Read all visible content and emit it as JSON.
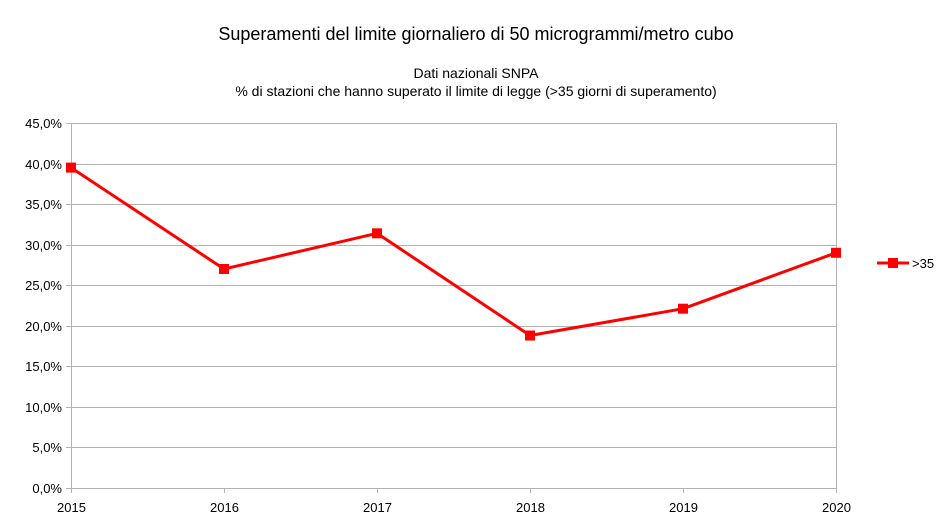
{
  "chart_data": {
    "type": "line",
    "title": "Superamenti del limite giornaliero di 50 microgrammi/metro cubo",
    "subtitle_lines": [
      "Dati nazionali SNPA",
      "% di stazioni che hanno superato il limite di legge (>35 giorni di superamento)"
    ],
    "xlabel": "",
    "ylabel": "",
    "categories": [
      "2015",
      "2016",
      "2017",
      "2018",
      "2019",
      "2020"
    ],
    "series": [
      {
        "name": ">35",
        "color": "#ff0000",
        "marker": "square",
        "values": [
          39.5,
          27.0,
          31.4,
          18.8,
          22.1,
          29.0
        ]
      }
    ],
    "ylim": [
      0,
      45
    ],
    "yticks": [
      0,
      5,
      10,
      15,
      20,
      25,
      30,
      35,
      40,
      45
    ],
    "ytick_labels": [
      "0,0%",
      "5,0%",
      "10,0%",
      "15,0%",
      "20,0%",
      "25,0%",
      "30,0%",
      "35,0%",
      "40,0%",
      "45,0%"
    ],
    "grid": true,
    "legend_position": "right"
  }
}
